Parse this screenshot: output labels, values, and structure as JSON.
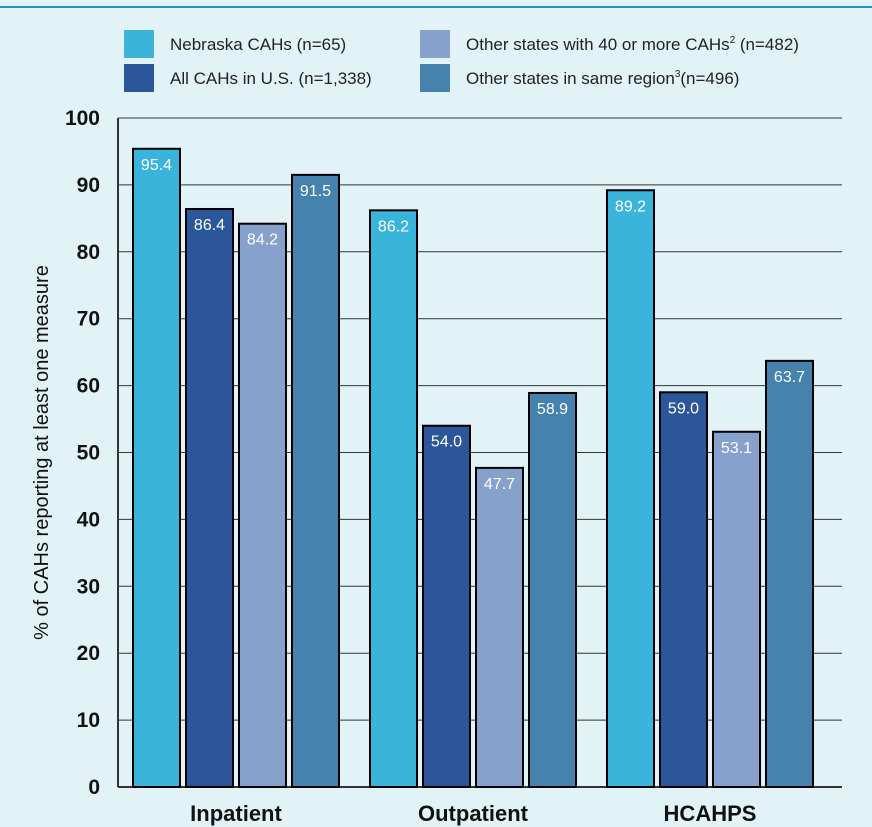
{
  "colors": {
    "background": "#e2f3f8",
    "rule": "#2b8fbf"
  },
  "chart_data": {
    "type": "bar",
    "categories": [
      "Inpatient",
      "Outpatient",
      "HCAHPS"
    ],
    "ylabel": "% of CAHs reporting at least one measure",
    "xlabel": "",
    "ylim": [
      0,
      100
    ],
    "yticks": [
      "0",
      "10",
      "20",
      "30",
      "40",
      "50",
      "60",
      "70",
      "80",
      "90",
      "100"
    ],
    "grid": "horizontal",
    "legend_position": "top",
    "series": [
      {
        "name": "Nebraska CAHs (n=65)",
        "name_sup": "",
        "name_tail": "",
        "color": "#3ab4da",
        "values": [
          95.4,
          86.2,
          89.2
        ],
        "labels": [
          "95.4",
          "86.2",
          "89.2"
        ]
      },
      {
        "name": "All CAHs in U.S. (n=1,338)",
        "name_sup": "",
        "name_tail": "",
        "color": "#2b579a",
        "values": [
          86.4,
          54.0,
          59.0
        ],
        "labels": [
          "86.4",
          "54.0",
          "59.0"
        ]
      },
      {
        "name": "Other states with 40 or more CAHs",
        "name_sup": "2",
        "name_tail": " (n=482)",
        "color": "#86a2cc",
        "values": [
          84.2,
          47.7,
          53.1
        ],
        "labels": [
          "84.2",
          "47.7",
          "53.1"
        ]
      },
      {
        "name": "Other states in same region",
        "name_sup": "3",
        "name_tail": "(n=496)",
        "color": "#4582ae",
        "values": [
          91.5,
          58.9,
          63.7
        ],
        "labels": [
          "91.5",
          "58.9",
          "63.7"
        ]
      }
    ]
  }
}
